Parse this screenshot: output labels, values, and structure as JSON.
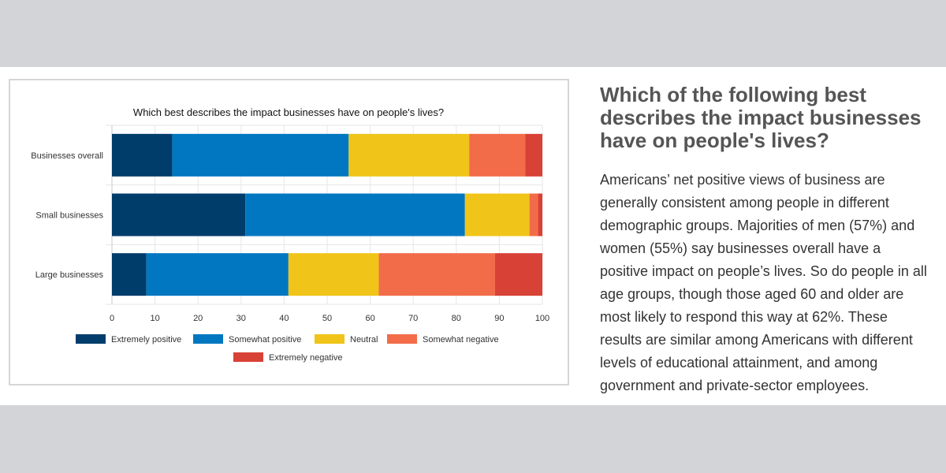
{
  "chart_data": {
    "type": "bar",
    "orientation": "horizontal",
    "stacked": true,
    "title": "Which best describes the impact businesses have on people's lives?",
    "categories": [
      "Businesses overall",
      "Small businesses",
      "Large businesses"
    ],
    "series": [
      {
        "name": "Extremely positive",
        "color": "#003d6b",
        "values": [
          14,
          31,
          8
        ]
      },
      {
        "name": "Somewhat positive",
        "color": "#0077c0",
        "values": [
          41,
          51,
          33
        ]
      },
      {
        "name": "Neutral",
        "color": "#f0c419",
        "values": [
          28,
          15,
          21
        ]
      },
      {
        "name": "Somewhat negative",
        "color": "#f26c4a",
        "values": [
          13,
          2,
          27
        ]
      },
      {
        "name": "Extremely negative",
        "color": "#d84136",
        "values": [
          4,
          1,
          11
        ]
      }
    ],
    "xlim": [
      0,
      100
    ],
    "xticks": [
      0,
      10,
      20,
      30,
      40,
      50,
      60,
      70,
      80,
      90,
      100
    ],
    "xlabel": "",
    "ylabel": "",
    "grid": true,
    "legend_position": "bottom"
  },
  "article": {
    "heading": "Which of the following best describes the impact businesses have on people's lives?",
    "body": "Americans’ net positive views of business are generally consistent among people in different demographic groups. Majorities of men (57%) and women (55%) say businesses overall have a positive impact on people’s lives. So do people in all age groups, though those aged 60 and older are most likely to respond this way at 62%. These results are similar among Americans with different levels of educational attainment, and among government and private-sector employees."
  }
}
